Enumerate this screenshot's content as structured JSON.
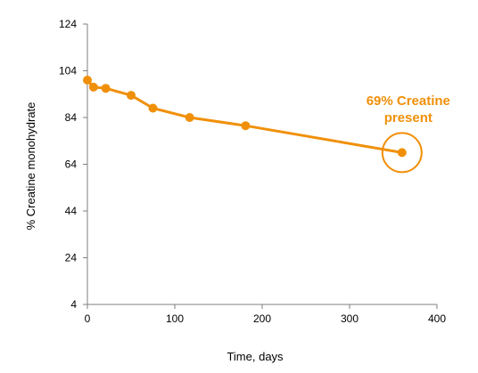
{
  "chart_data": {
    "type": "line",
    "title": "",
    "xlabel": "Time, days",
    "ylabel": "% Creatine monohydrate",
    "xlim": [
      0,
      400
    ],
    "ylim": [
      4,
      124
    ],
    "xticks": [
      0,
      100,
      200,
      300,
      400
    ],
    "yticks": [
      4,
      24,
      44,
      64,
      84,
      104,
      124
    ],
    "grid": false,
    "legend": "none",
    "series": [
      {
        "color": "#F0900A",
        "x": [
          0,
          7,
          21,
          50,
          75,
          117,
          181,
          360
        ],
        "y": [
          100,
          97,
          96.5,
          93.5,
          88,
          84,
          80.5,
          69
        ]
      }
    ],
    "annotations": [
      {
        "lines": [
          "69% Creatine",
          "present"
        ],
        "target": {
          "x": 360,
          "y": 69
        },
        "shape": "circle",
        "color": "#F0900A"
      }
    ]
  }
}
